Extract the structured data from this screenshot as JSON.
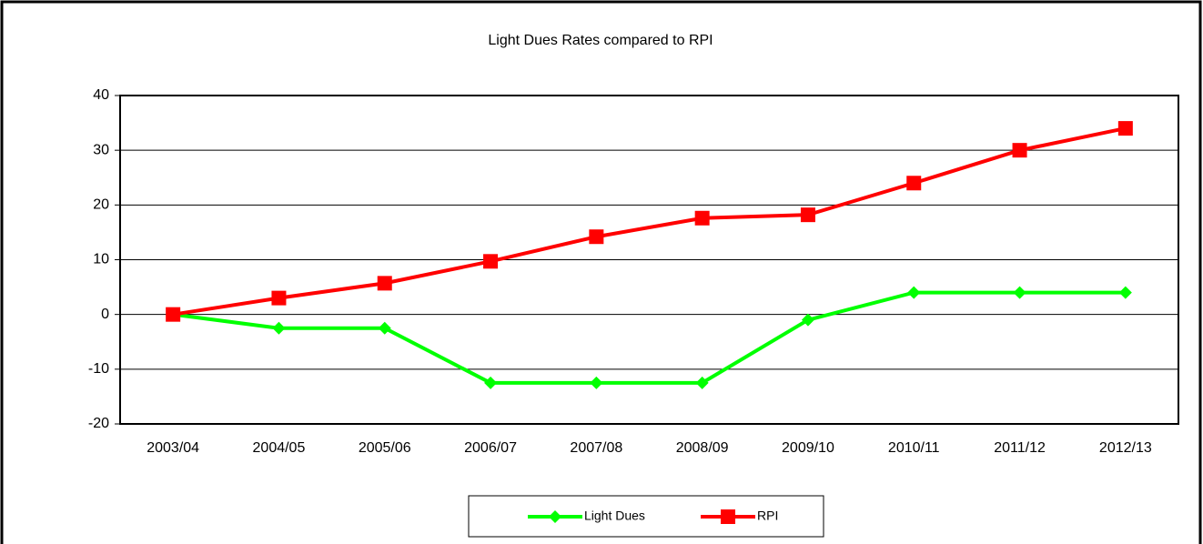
{
  "chart_data": {
    "type": "line",
    "title": "Light Dues Rates compared to RPI",
    "categories": [
      "2003/04",
      "2004/05",
      "2005/06",
      "2006/07",
      "2007/08",
      "2008/09",
      "2009/10",
      "2010/11",
      "2011/12",
      "2012/13"
    ],
    "series": [
      {
        "name": "Light Dues",
        "color": "#00ff00",
        "marker": "diamond",
        "values": [
          0,
          -2.5,
          -2.5,
          -12.5,
          -12.5,
          -12.5,
          -1,
          4,
          4,
          4
        ]
      },
      {
        "name": "RPI",
        "color": "#ff0000",
        "marker": "square",
        "values": [
          0,
          3,
          5.7,
          9.7,
          14.2,
          17.6,
          18.2,
          24,
          30,
          34
        ]
      }
    ],
    "ylim": [
      -20,
      40
    ],
    "yticks": [
      -20,
      -10,
      0,
      10,
      20,
      30,
      40
    ],
    "grid": true,
    "legend": "bottom"
  }
}
